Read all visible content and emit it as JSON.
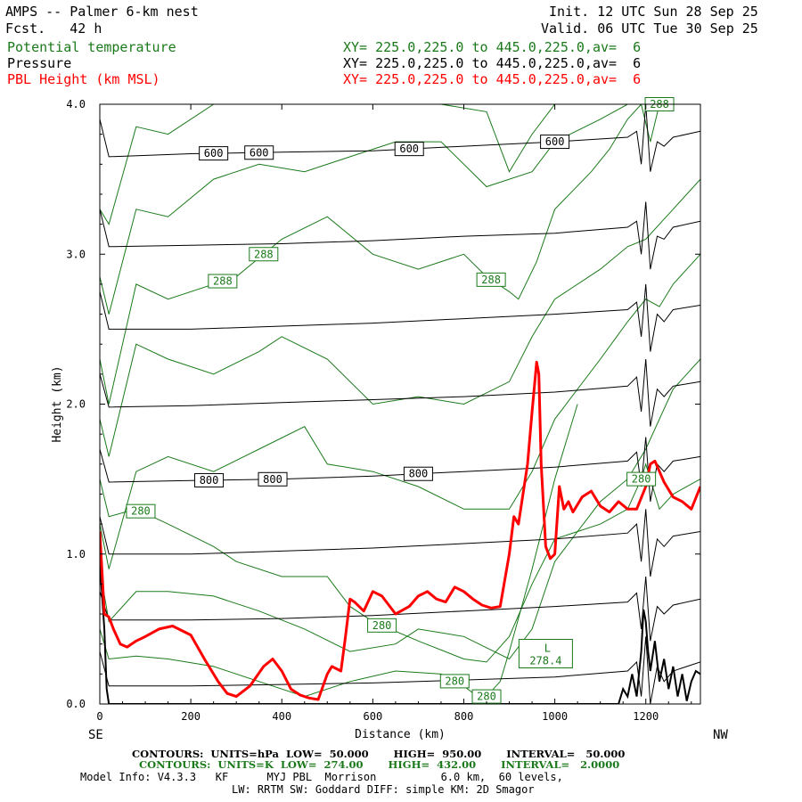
{
  "header": {
    "title": "AMPS -- Palmer 6-km nest",
    "forecast": "Fcst.   42 h",
    "init": "Init. 12 UTC Sun 28 Sep 25",
    "valid": "Valid. 06 UTC Tue 30 Sep 25",
    "fields": [
      {
        "name": "Potential temperature",
        "xy": "XY= 225.0,225.0 to 445.0,225.0,av=  6",
        "color": "#1a7a1a"
      },
      {
        "name": "Pressure",
        "xy": "XY= 225.0,225.0 to 445.0,225.0,av=  6",
        "color": "#000000"
      },
      {
        "name": "PBL Height (km MSL)",
        "xy": "XY= 225.0,225.0 to 445.0,225.0,av=  6",
        "color": "#ff0000"
      }
    ]
  },
  "footer": {
    "pressure_contours": "CONTOURS:  UNITS=hPa  LOW=  50.000       HIGH=  950.00       INTERVAL=   50.000",
    "theta_contours": "CONTOURS:  UNITS=K  LOW=  274.00       HIGH=  432.00       INTERVAL=   2.0000",
    "model_info": "Model Info: V4.3.3   KF      MYJ PBL  Morrison          6.0 km,  60 levels,",
    "model_info2": "LW: RRTM SW: Goddard DIFF: simple KM: 2D Smagor"
  },
  "chart_data": {
    "type": "line",
    "xlabel": "Distance (km)",
    "ylabel": "Height (km)",
    "xlim": [
      0,
      1320
    ],
    "ylim": [
      0,
      4.0
    ],
    "x_ticks": [
      "0",
      "200",
      "400",
      "600",
      "800",
      "1000",
      "1200"
    ],
    "y_ticks": [
      "0.0",
      "1.0",
      "2.0",
      "3.0",
      "4.0"
    ],
    "x_tick_values": [
      0,
      200,
      400,
      600,
      800,
      1000,
      1200
    ],
    "y_tick_values": [
      0,
      1,
      2,
      3,
      4
    ],
    "left_end_label": "SE",
    "right_end_label": "NW",
    "pbl_height": {
      "name": "PBL Height (km MSL)",
      "color": "#ff0000",
      "x": [
        0,
        10,
        20,
        30,
        45,
        60,
        80,
        100,
        130,
        160,
        200,
        230,
        260,
        280,
        300,
        330,
        360,
        380,
        400,
        420,
        440,
        460,
        480,
        500,
        510,
        530,
        540,
        550,
        560,
        580,
        600,
        620,
        650,
        680,
        700,
        720,
        740,
        760,
        780,
        800,
        820,
        840,
        860,
        880,
        900,
        910,
        920,
        940,
        950,
        960,
        965,
        970,
        980,
        990,
        1000,
        1010,
        1020,
        1030,
        1040,
        1060,
        1080,
        1100,
        1120,
        1140,
        1160,
        1180,
        1200,
        1210,
        1220,
        1240,
        1260,
        1280,
        1300,
        1320
      ],
      "y": [
        1.15,
        0.6,
        0.58,
        0.5,
        0.4,
        0.38,
        0.42,
        0.45,
        0.5,
        0.52,
        0.46,
        0.3,
        0.15,
        0.07,
        0.05,
        0.12,
        0.25,
        0.3,
        0.22,
        0.1,
        0.06,
        0.04,
        0.03,
        0.2,
        0.25,
        0.22,
        0.45,
        0.7,
        0.68,
        0.62,
        0.75,
        0.72,
        0.6,
        0.65,
        0.72,
        0.75,
        0.7,
        0.68,
        0.78,
        0.75,
        0.7,
        0.66,
        0.64,
        0.65,
        1.0,
        1.25,
        1.2,
        1.6,
        1.95,
        2.28,
        2.2,
        1.6,
        1.05,
        0.97,
        1.0,
        1.45,
        1.3,
        1.35,
        1.28,
        1.38,
        1.42,
        1.32,
        1.28,
        1.35,
        1.3,
        1.3,
        1.45,
        1.6,
        1.62,
        1.48,
        1.38,
        1.35,
        1.3,
        1.45
      ]
    },
    "pressure_contours": [
      {
        "label": "600",
        "x": [
          0,
          20,
          200,
          400,
          600,
          800,
          1000,
          1160,
          1180,
          1190,
          1200,
          1210,
          1225,
          1240,
          1260,
          1320
        ],
        "y": [
          3.9,
          3.65,
          3.67,
          3.68,
          3.69,
          3.72,
          3.75,
          3.78,
          3.82,
          3.6,
          4.0,
          3.55,
          3.75,
          3.72,
          3.78,
          3.82
        ],
        "label_x": [
          250,
          350,
          680,
          1000
        ]
      },
      {
        "label": "",
        "x": [
          0,
          20,
          200,
          400,
          600,
          800,
          1000,
          1160,
          1180,
          1190,
          1200,
          1210,
          1225,
          1240,
          1260,
          1320
        ],
        "y": [
          3.3,
          3.05,
          3.06,
          3.07,
          3.09,
          3.12,
          3.14,
          3.18,
          3.22,
          3.0,
          3.35,
          2.9,
          3.12,
          3.1,
          3.18,
          3.22
        ],
        "label_x": []
      },
      {
        "label": "",
        "x": [
          0,
          20,
          200,
          400,
          600,
          800,
          1000,
          1160,
          1180,
          1190,
          1200,
          1210,
          1225,
          1240,
          1260,
          1320
        ],
        "y": [
          2.75,
          2.5,
          2.5,
          2.52,
          2.54,
          2.57,
          2.6,
          2.63,
          2.68,
          2.45,
          2.8,
          2.35,
          2.6,
          2.55,
          2.63,
          2.66
        ],
        "label_x": []
      },
      {
        "label": "",
        "x": [
          0,
          20,
          200,
          400,
          600,
          800,
          1000,
          1160,
          1180,
          1190,
          1200,
          1210,
          1225,
          1240,
          1260,
          1320
        ],
        "y": [
          2.2,
          1.98,
          1.99,
          2.01,
          2.03,
          2.05,
          2.08,
          2.12,
          2.18,
          1.95,
          2.3,
          1.85,
          2.1,
          2.05,
          2.12,
          2.15
        ],
        "label_x": []
      },
      {
        "label": "800",
        "x": [
          0,
          20,
          200,
          400,
          600,
          800,
          1000,
          1160,
          1180,
          1190,
          1200,
          1210,
          1225,
          1240,
          1260,
          1320
        ],
        "y": [
          1.7,
          1.48,
          1.49,
          1.5,
          1.52,
          1.55,
          1.58,
          1.62,
          1.68,
          1.45,
          1.78,
          1.35,
          1.6,
          1.55,
          1.62,
          1.65
        ],
        "label_x": [
          240,
          380,
          700
        ]
      },
      {
        "label": "",
        "x": [
          0,
          20,
          200,
          400,
          600,
          800,
          1000,
          1160,
          1180,
          1190,
          1200,
          1210,
          1225,
          1240,
          1260,
          1320
        ],
        "y": [
          1.25,
          1.0,
          1.0,
          1.02,
          1.04,
          1.07,
          1.1,
          1.14,
          1.2,
          0.95,
          1.3,
          0.85,
          1.1,
          1.05,
          1.12,
          1.15
        ],
        "label_x": []
      },
      {
        "label": "",
        "x": [
          0,
          20,
          200,
          400,
          600,
          800,
          1000,
          1160,
          1180,
          1190,
          1200,
          1210,
          1225,
          1240,
          1260,
          1320
        ],
        "y": [
          0.75,
          0.56,
          0.56,
          0.57,
          0.59,
          0.62,
          0.65,
          0.68,
          0.74,
          0.5,
          0.85,
          0.42,
          0.65,
          0.6,
          0.66,
          0.7
        ],
        "label_x": []
      },
      {
        "label": "",
        "x": [
          0,
          20,
          200,
          400,
          600,
          800,
          1000,
          1160,
          1180,
          1190,
          1200,
          1210,
          1225,
          1240,
          1260,
          1320
        ],
        "y": [
          0.35,
          0.12,
          0.12,
          0.13,
          0.14,
          0.16,
          0.18,
          0.22,
          0.28,
          0.05,
          0.45,
          0.0,
          0.25,
          0.15,
          0.22,
          0.28
        ],
        "label_x": []
      }
    ],
    "terrain": {
      "x": [
        0,
        10,
        15,
        20,
        1140,
        1150,
        1160,
        1170,
        1180,
        1190,
        1195,
        1200,
        1205,
        1210,
        1220,
        1230,
        1240,
        1250,
        1260,
        1270,
        1280,
        1290,
        1300,
        1310,
        1320
      ],
      "y": [
        0.95,
        0.5,
        0.1,
        0.0,
        0.0,
        0.1,
        0.05,
        0.2,
        0.05,
        0.35,
        0.63,
        0.55,
        0.35,
        0.22,
        0.42,
        0.15,
        0.3,
        0.1,
        0.25,
        0.05,
        0.2,
        0.02,
        0.15,
        0.22,
        0.2
      ]
    },
    "theta_contours": [
      {
        "label": "288",
        "x": [
          0,
          20,
          80,
          150,
          300,
          400,
          500,
          600,
          700,
          800,
          850,
          900,
          920,
          960,
          1000,
          1080,
          1120,
          1160,
          1190,
          1210,
          1230,
          1260,
          1320
        ],
        "y": [
          2.3,
          2.0,
          2.8,
          2.7,
          2.85,
          3.1,
          3.25,
          3.0,
          2.9,
          3.0,
          2.85,
          2.75,
          2.7,
          2.95,
          3.3,
          3.55,
          3.7,
          3.9,
          4.0,
          3.75,
          4.0,
          4.0,
          4.0
        ],
        "label_x": [
          270,
          360,
          860,
          1230
        ]
      },
      {
        "label": "280",
        "x": [
          0,
          20,
          80,
          150,
          250,
          300,
          400,
          500,
          550,
          600,
          700,
          800,
          850,
          900,
          950,
          1000,
          1100,
          1160,
          1190,
          1200,
          1230,
          1260,
          1320
        ],
        "y": [
          1.5,
          1.25,
          1.3,
          1.2,
          1.05,
          0.95,
          0.85,
          0.85,
          0.65,
          0.55,
          0.42,
          0.3,
          0.28,
          0.45,
          0.8,
          1.1,
          1.2,
          1.3,
          1.5,
          1.6,
          1.3,
          1.4,
          1.5
        ],
        "label_x": [
          90,
          620,
          1190
        ]
      },
      {
        "label": "280",
        "x": [
          0,
          20,
          80,
          150,
          250,
          350,
          450,
          550,
          650,
          750,
          800,
          830,
          850
        ],
        "y": [
          0.5,
          0.3,
          0.32,
          0.3,
          0.25,
          0.15,
          0.05,
          0.15,
          0.22,
          0.2,
          0.12,
          0.05,
          0.0
        ],
        "label_x": [
          780
        ]
      },
      {
        "label": "280",
        "x": [
          830,
          850,
          880,
          900,
          950,
          1000,
          1050
        ],
        "y": [
          0.0,
          0.05,
          0.15,
          0.35,
          0.9,
          1.5,
          2.0
        ],
        "label_x": [
          850
        ]
      }
    ],
    "theta_extra_lines": [
      {
        "x": [
          0,
          20,
          80,
          150,
          250,
          350,
          450,
          550,
          650,
          750,
          850,
          900,
          950,
          1000,
          1100,
          1160,
          1200,
          1230,
          1260,
          1320
        ],
        "y": [
          3.3,
          3.2,
          3.85,
          3.8,
          4.0,
          4.0,
          4.0,
          4.0,
          4.0,
          4.0,
          3.95,
          3.55,
          3.8,
          4.0,
          4.0,
          4.0,
          4.0,
          4.0,
          4.0,
          4.0
        ]
      },
      {
        "x": [
          0,
          20,
          80,
          150,
          250,
          350,
          450,
          550,
          650,
          750,
          850,
          950,
          1000,
          1100,
          1160,
          1200,
          1230,
          1260,
          1320
        ],
        "y": [
          2.85,
          2.6,
          3.3,
          3.25,
          3.5,
          3.6,
          3.55,
          3.65,
          3.75,
          3.75,
          3.45,
          3.55,
          3.75,
          3.9,
          4.0,
          4.0,
          4.0,
          4.0,
          4.0
        ]
      },
      {
        "x": [
          0,
          20,
          80,
          150,
          250,
          350,
          400,
          500,
          600,
          700,
          800,
          900,
          950,
          1000,
          1100,
          1160,
          1200,
          1230,
          1260,
          1320
        ],
        "y": [
          1.9,
          1.65,
          2.4,
          2.3,
          2.2,
          2.35,
          2.45,
          2.3,
          2.0,
          2.05,
          2.0,
          2.15,
          2.45,
          2.7,
          2.9,
          3.05,
          3.1,
          3.2,
          3.3,
          3.5
        ]
      },
      {
        "x": [
          0,
          20,
          80,
          150,
          250,
          350,
          450,
          500,
          600,
          700,
          800,
          900,
          950,
          1000,
          1100,
          1160,
          1200,
          1230,
          1260,
          1320
        ],
        "y": [
          1.2,
          0.9,
          1.55,
          1.65,
          1.55,
          1.7,
          1.85,
          1.6,
          1.55,
          1.45,
          1.3,
          1.3,
          1.55,
          1.9,
          2.3,
          2.55,
          2.7,
          2.65,
          2.8,
          3.0
        ]
      },
      {
        "x": [
          0,
          20,
          80,
          150,
          250,
          350,
          450,
          550,
          650,
          700,
          800,
          900,
          950,
          1000,
          1050,
          1100,
          1160,
          1200,
          1230,
          1260,
          1320
        ],
        "y": [
          0.9,
          0.55,
          0.75,
          0.75,
          0.72,
          0.62,
          0.5,
          0.35,
          0.4,
          0.5,
          0.45,
          0.3,
          0.5,
          0.95,
          1.15,
          1.35,
          1.5,
          1.7,
          1.9,
          2.1,
          2.3
        ]
      }
    ],
    "low_label": {
      "letter": "L",
      "value": "278.4",
      "x": 980,
      "y": 0.33
    }
  }
}
